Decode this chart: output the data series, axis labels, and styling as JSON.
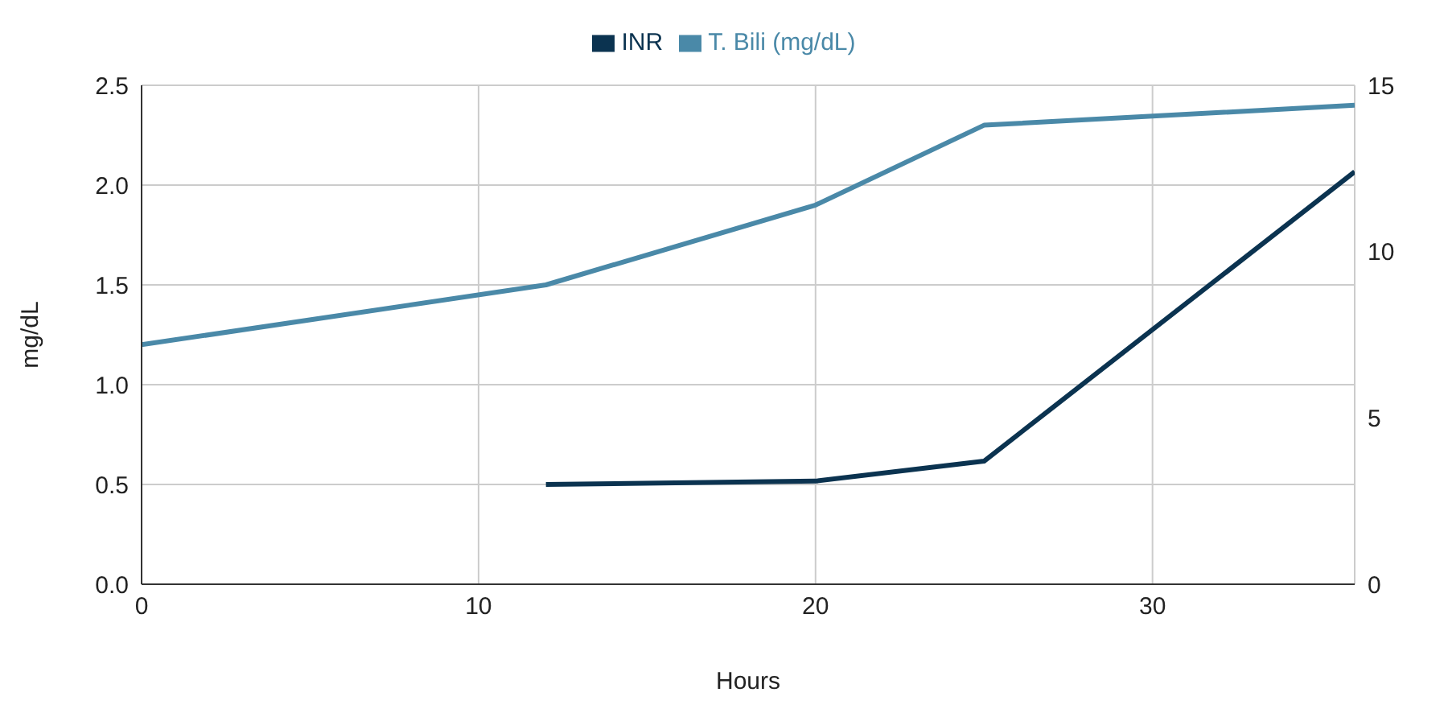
{
  "chart_data": {
    "type": "line",
    "xlabel": "Hours",
    "ylabel": "mg/dL",
    "x": [
      0,
      12,
      20,
      25,
      36
    ],
    "series": [
      {
        "name": "T. Bili (mg/dL)",
        "color": "#4a89a8",
        "values": [
          1.2,
          1.5,
          1.9,
          2.3,
          2.4
        ]
      },
      {
        "name": "INR",
        "color": "#0b3350",
        "axis": "y2",
        "values": [
          null,
          3.0,
          3.1,
          3.7,
          12.4
        ]
      }
    ],
    "xlim": [
      0,
      36
    ],
    "xticks": [
      0,
      10,
      20,
      30
    ],
    "ylim": [
      0,
      2.5
    ],
    "yticks": [
      {
        "value": 0,
        "label": "0.0"
      },
      {
        "value": 0.5,
        "label": "0.5"
      },
      {
        "value": 1,
        "label": "1.0"
      },
      {
        "value": 1.5,
        "label": "1.5"
      },
      {
        "value": 2,
        "label": "2.0"
      },
      {
        "value": 2.5,
        "label": "2.5"
      }
    ],
    "y2lim": [
      0,
      15
    ],
    "y2ticks": [
      0,
      5,
      10,
      15
    ],
    "grid": true,
    "legend": "top",
    "marker": "none",
    "line_style": "solid"
  }
}
